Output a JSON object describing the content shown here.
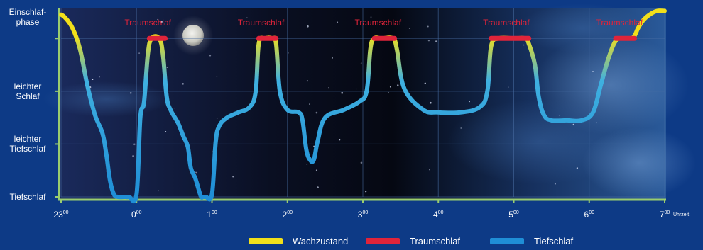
{
  "chart_data": {
    "type": "line",
    "title": "",
    "xlabel": "",
    "x_unit_label": "Uhrzeit",
    "x_ticks": [
      {
        "value": 23,
        "label": "23",
        "sup": "00"
      },
      {
        "value": 24,
        "label": "0",
        "sup": "00"
      },
      {
        "value": 25,
        "label": "1",
        "sup": "00"
      },
      {
        "value": 26,
        "label": "2",
        "sup": "00"
      },
      {
        "value": 27,
        "label": "3",
        "sup": "00"
      },
      {
        "value": 28,
        "label": "4",
        "sup": "00"
      },
      {
        "value": 29,
        "label": "5",
        "sup": "00"
      },
      {
        "value": 30,
        "label": "6",
        "sup": "00"
      },
      {
        "value": 31,
        "label": "7",
        "sup": "00"
      }
    ],
    "xlim": [
      23,
      31
    ],
    "y_levels": [
      {
        "value": 3,
        "label_lines": [
          "Einschlaf-",
          "phase"
        ]
      },
      {
        "value": 2,
        "label_lines": [
          "leichter",
          "Schlaf"
        ]
      },
      {
        "value": 1,
        "label_lines": [
          "leichter",
          "Tiefschlaf"
        ]
      },
      {
        "value": 0,
        "label_lines": [
          "Tiefschlaf"
        ]
      }
    ],
    "ylim": [
      0,
      3.5
    ],
    "grid": true,
    "legend_position": "bottom",
    "legend": [
      {
        "label": "Wachzustand",
        "color": "#f2e01a"
      },
      {
        "label": "Traumschlaf",
        "color": "#e0243a"
      },
      {
        "label": "Tiefschlaf",
        "color": "#1f8ed6"
      }
    ],
    "annotations": [
      {
        "text": "Traumschlaf",
        "x": 24.15
      },
      {
        "text": "Traumschlaf",
        "x": 25.65
      },
      {
        "text": "Traumschlaf",
        "x": 27.2
      },
      {
        "text": "Traumschlaf",
        "x": 28.9
      },
      {
        "text": "Traumschlaf",
        "x": 30.4
      }
    ],
    "dream_sleep_periods": [
      [
        24.17,
        24.38
      ],
      [
        25.62,
        25.85
      ],
      [
        27.15,
        27.42
      ],
      [
        28.7,
        29.2
      ],
      [
        30.35,
        30.6
      ]
    ],
    "series": [
      {
        "x": [
          23.0,
          23.05,
          23.15,
          23.25,
          23.35,
          23.45,
          23.55,
          23.6,
          23.65,
          23.7,
          23.75,
          23.85,
          23.9,
          24.0,
          24.05,
          24.1,
          24.15,
          24.2,
          24.3,
          24.35,
          24.4,
          24.45,
          24.55,
          24.62,
          24.68,
          24.72,
          24.78,
          24.85,
          24.88,
          24.9,
          24.92,
          25.0,
          25.05,
          25.1,
          25.2,
          25.35,
          25.5,
          25.58,
          25.62,
          25.7,
          25.8,
          25.85,
          25.9,
          26.0,
          26.15,
          26.2,
          26.25,
          26.3,
          26.35,
          26.4,
          26.5,
          26.75,
          26.95,
          27.05,
          27.1,
          27.15,
          27.25,
          27.4,
          27.45,
          27.55,
          27.8,
          28.0,
          28.3,
          28.55,
          28.65,
          28.7,
          28.8,
          29.0,
          29.15,
          29.2,
          29.28,
          29.33,
          29.4,
          29.5,
          29.7,
          29.9,
          30.05,
          30.15,
          30.25,
          30.35,
          30.45,
          30.55,
          30.6,
          30.65,
          30.72,
          30.8,
          30.9,
          31.0
        ],
        "y": [
          3.45,
          3.4,
          3.2,
          2.8,
          2.1,
          1.55,
          1.2,
          0.8,
          0.3,
          0.05,
          0.0,
          0.0,
          0.0,
          0.05,
          1.5,
          1.8,
          2.7,
          3.0,
          3.0,
          2.7,
          1.9,
          1.65,
          1.4,
          1.15,
          0.95,
          0.55,
          0.35,
          0.02,
          0.0,
          0.0,
          0.0,
          0.05,
          1.05,
          1.35,
          1.5,
          1.6,
          1.7,
          2.0,
          2.9,
          3.0,
          3.0,
          2.9,
          2.0,
          1.65,
          1.6,
          1.45,
          0.9,
          0.7,
          0.7,
          1.05,
          1.5,
          1.65,
          1.8,
          2.0,
          2.8,
          3.0,
          3.0,
          3.0,
          2.8,
          2.05,
          1.65,
          1.6,
          1.6,
          1.7,
          2.0,
          2.85,
          3.0,
          3.0,
          3.0,
          2.9,
          2.5,
          1.9,
          1.55,
          1.45,
          1.45,
          1.45,
          1.6,
          2.1,
          2.6,
          2.95,
          3.0,
          3.0,
          3.05,
          3.2,
          3.35,
          3.45,
          3.52,
          3.52
        ]
      }
    ]
  }
}
